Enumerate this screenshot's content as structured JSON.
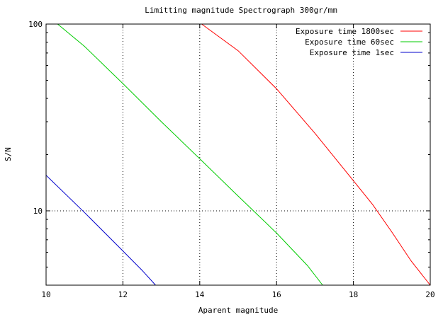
{
  "chart_data": {
    "type": "line",
    "title": "Limitting magnitude  Spectrograph 300gr/mm",
    "xlabel": "Aparent magnitude",
    "ylabel": "S/N",
    "xlim": [
      10,
      20
    ],
    "ylim": [
      4,
      100
    ],
    "yscale": "log",
    "grid": true,
    "legend_position": "top-right",
    "x_ticks": [
      10,
      12,
      14,
      16,
      18,
      20
    ],
    "y_ticks": [
      10,
      100
    ],
    "series": [
      {
        "name": "Exposure time 1800sec",
        "color": "#ff0000",
        "points": [
          [
            14.05,
            100
          ],
          [
            15,
            72
          ],
          [
            16,
            45
          ],
          [
            17,
            26
          ],
          [
            18,
            14.5
          ],
          [
            18.5,
            10.8
          ],
          [
            19,
            7.7
          ],
          [
            19.5,
            5.4
          ],
          [
            20,
            4.0
          ]
        ]
      },
      {
        "name": "Exposure time 60sec",
        "color": "#00cc00",
        "points": [
          [
            10.3,
            100
          ],
          [
            11,
            76
          ],
          [
            12,
            48
          ],
          [
            13,
            30
          ],
          [
            14,
            19
          ],
          [
            15,
            12
          ],
          [
            16,
            7.6
          ],
          [
            16.8,
            5.1
          ],
          [
            17.2,
            4.0
          ]
        ]
      },
      {
        "name": "Exposure time 1sec",
        "color": "#0000cc",
        "points": [
          [
            10,
            15.5
          ],
          [
            11,
            9.8
          ],
          [
            12,
            6.1
          ],
          [
            12.5,
            4.8
          ],
          [
            12.85,
            4.0
          ]
        ]
      }
    ]
  }
}
